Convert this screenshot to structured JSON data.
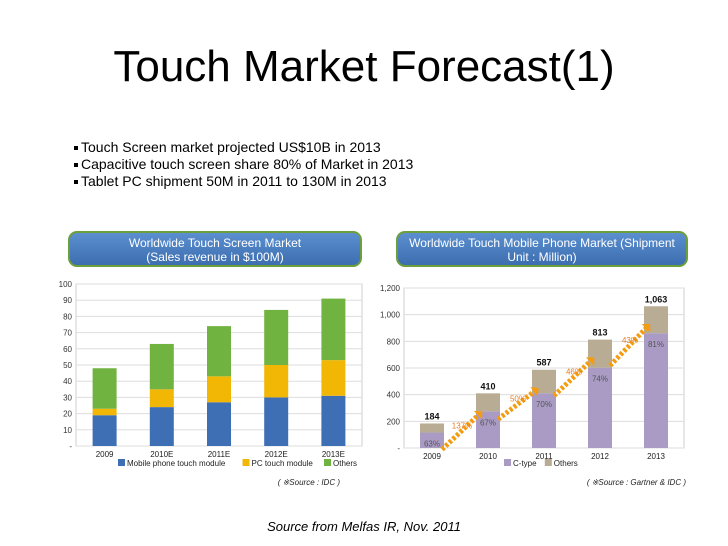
{
  "slide": {
    "title": "Touch Market Forecast(1)",
    "bullets": [
      "Touch Screen market projected US$10B in 2013",
      "Capacitive touch screen share 80% of Market in 2013",
      "Tablet PC shipment 50M in 2011 to 130M in 2013"
    ],
    "footer": "Source from Melfas IR, Nov. 2011",
    "colors": {
      "pill": "#4a7fc1",
      "pill_border": "#6b9f3c"
    }
  },
  "chart_data": [
    {
      "type": "bar",
      "stacked": true,
      "title": "Worldwide Touch Screen Market\n(Sales revenue in $100M)",
      "title_lines": [
        "Worldwide Touch Screen Market",
        "(Sales revenue in $100M)"
      ],
      "categories": [
        "2009",
        "2010E",
        "2011E",
        "2012E",
        "2013E"
      ],
      "series": [
        {
          "name": "Mobile phone touch module",
          "color": "#3e6fb5",
          "values": [
            19,
            24,
            27,
            30,
            31
          ]
        },
        {
          "name": "PC touch module",
          "color": "#f2b705",
          "values": [
            4,
            11,
            16,
            20,
            22
          ]
        },
        {
          "name": "Others",
          "color": "#71b340",
          "values": [
            25,
            28,
            31,
            34,
            38
          ]
        }
      ],
      "ylim": [
        0,
        100
      ],
      "yticks": [
        "100",
        "90",
        "80",
        "70",
        "60",
        "50",
        "40",
        "30",
        "20",
        "10",
        "-"
      ],
      "grid": true,
      "legend": "bottom",
      "source": "( ※Source : IDC )"
    },
    {
      "type": "bar",
      "stacked": true,
      "title": "Worldwide Touch Mobile Phone Market (Shipment\nUnit : Million)",
      "title_lines": [
        "Worldwide Touch Mobile Phone Market (Shipment",
        "Unit : Million)"
      ],
      "categories": [
        "2009",
        "2010",
        "2011",
        "2012",
        "2013"
      ],
      "totals": [
        184,
        410,
        587,
        813,
        1063
      ],
      "total_labels": [
        "184",
        "410",
        "587",
        "813",
        "1,063"
      ],
      "series": [
        {
          "name": "C-type",
          "color": "#a99bc4",
          "values": [
            116,
            275,
            411,
            602,
            861
          ]
        },
        {
          "name": "Others",
          "color": "#b8ad94",
          "values": [
            68,
            135,
            176,
            211,
            202
          ]
        }
      ],
      "share_labels": [
        "63%",
        "67%",
        "70%",
        "74%",
        "81%"
      ],
      "growth_labels": [
        "137%",
        "50%",
        "46%",
        "43%"
      ],
      "ylim": [
        0,
        1200
      ],
      "yticks": [
        "1,200",
        "1,000",
        "800",
        "600",
        "400",
        "200",
        "-"
      ],
      "grid": true,
      "legend": "bottom",
      "source": "( ※Source : Gartner & IDC )"
    }
  ]
}
